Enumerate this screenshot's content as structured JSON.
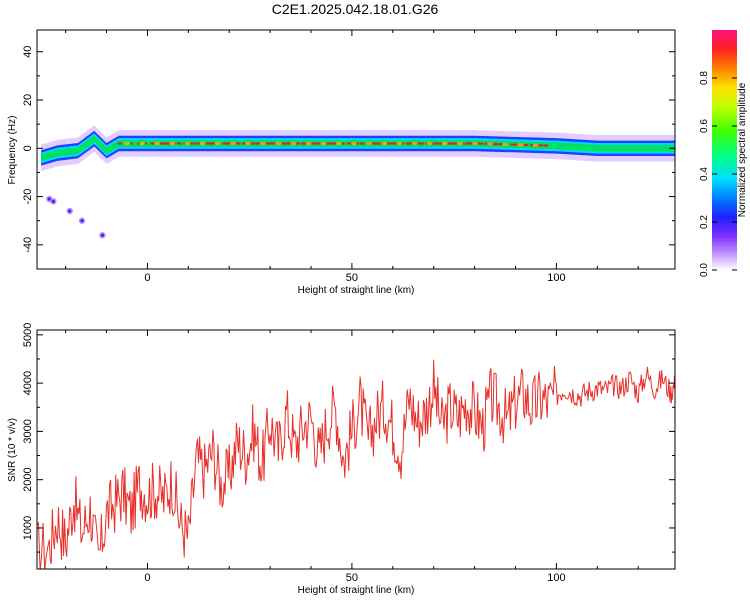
{
  "title": "C2E1.2025.042.18.01.G26",
  "colors": {
    "snr_line": "#e8302a",
    "ridge_core": "#e0203a",
    "ridge_mid": "#00e060",
    "ridge_edge": "#2040ff",
    "halo": "#b070ff"
  },
  "chart_data": [
    {
      "type": "heatmap",
      "title": "C2E1.2025.042.18.01.G26",
      "xlabel": "Height of straight line (km)",
      "ylabel": "Frequency (Hz)",
      "xlim": [
        -27,
        129
      ],
      "ylim": [
        -50,
        49
      ],
      "xticks": [
        0,
        50,
        100
      ],
      "xtick_labels": [
        "0",
        "50",
        "100"
      ],
      "yticks": [
        -40,
        -20,
        0,
        20,
        40
      ],
      "ytick_labels": [
        "-40",
        "-20",
        "0",
        "20",
        "40"
      ],
      "colorbar": {
        "label": "Normalized spectral amplitude",
        "range": [
          0,
          1
        ],
        "ticks": [
          0.0,
          0.2,
          0.4,
          0.6,
          0.8
        ],
        "tick_labels": [
          "0.0",
          "0.2",
          "0.4",
          "0.6",
          "0.8"
        ],
        "colormap": "rainbow (white/violet → blue → cyan → green → yellow → red → magenta)"
      },
      "ridge": {
        "description": "Spectral energy concentrated near 0–2 Hz across the height range",
        "center_frequency_hz": [
          {
            "x": -26,
            "y": -4
          },
          {
            "x": -22,
            "y": -2
          },
          {
            "x": -17,
            "y": -1
          },
          {
            "x": -13,
            "y": 4
          },
          {
            "x": -10,
            "y": -1
          },
          {
            "x": -7,
            "y": 2
          },
          {
            "x": 0,
            "y": 2
          },
          {
            "x": 20,
            "y": 2
          },
          {
            "x": 50,
            "y": 2
          },
          {
            "x": 80,
            "y": 2
          },
          {
            "x": 100,
            "y": 1
          },
          {
            "x": 110,
            "y": 0
          },
          {
            "x": 129,
            "y": 0
          }
        ]
      },
      "scattered_points": [
        {
          "x": -24,
          "y": -21
        },
        {
          "x": -23,
          "y": -22
        },
        {
          "x": -19,
          "y": -26
        },
        {
          "x": -16,
          "y": -30
        },
        {
          "x": -11,
          "y": -36
        }
      ],
      "grid": false
    },
    {
      "type": "line",
      "xlabel": "Height of straight line (km)",
      "ylabel": "SNR (10 * v/v)",
      "xlim": [
        -27,
        129
      ],
      "ylim": [
        150,
        5100
      ],
      "xticks": [
        0,
        50,
        100
      ],
      "xtick_labels": [
        "0",
        "50",
        "100"
      ],
      "yticks": [
        1000,
        2000,
        3000,
        4000,
        5000
      ],
      "ytick_labels": [
        "1000",
        "2000",
        "3000",
        "4000",
        "5000"
      ],
      "series": [
        {
          "x": [
            -27,
            -24,
            -22,
            -20,
            -18,
            -16,
            -14,
            -12,
            -10,
            -8,
            -6,
            -4,
            -2,
            0,
            2,
            4,
            6,
            8,
            10,
            12,
            14,
            16,
            18,
            20,
            22,
            24,
            26,
            28,
            30,
            32,
            34,
            36,
            38,
            40,
            42,
            44,
            46,
            48,
            50,
            52,
            54,
            56,
            58,
            60,
            62,
            64,
            66,
            68,
            70,
            72,
            74,
            76,
            78,
            80,
            82,
            84,
            86,
            88,
            90,
            92,
            94,
            96,
            98,
            100,
            102,
            104,
            106,
            108,
            110,
            112,
            114,
            116,
            118,
            120,
            122,
            124,
            126,
            128,
            129
          ],
          "y": [
            550,
            600,
            1200,
            700,
            1600,
            900,
            1400,
            300,
            1300,
            1500,
            1750,
            1300,
            1900,
            1700,
            1800,
            1600,
            2000,
            1100,
            800,
            2400,
            2200,
            2600,
            1900,
            2100,
            2800,
            2500,
            3000,
            2300,
            3200,
            2600,
            3400,
            2700,
            3100,
            3300,
            2500,
            3200,
            3500,
            2400,
            3000,
            3600,
            2800,
            3300,
            3500,
            3100,
            2600,
            3700,
            3200,
            3400,
            3900,
            3100,
            3500,
            3300,
            3600,
            3400,
            3100,
            3700,
            3500,
            3200,
            3600,
            3800,
            3500,
            3700,
            3600,
            3750,
            3900,
            3800,
            3750,
            3850,
            3900,
            3850,
            3950,
            3900,
            4100,
            3800,
            4200,
            3900,
            4100,
            3800,
            4000
          ]
        }
      ],
      "grid": false
    }
  ]
}
